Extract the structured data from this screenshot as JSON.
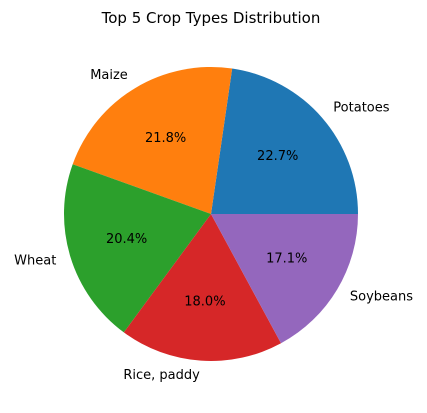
{
  "chart_data": {
    "type": "pie",
    "title": "Top 5 Crop Types Distribution",
    "categories": [
      "Potatoes",
      "Maize",
      "Wheat",
      "Rice, paddy",
      "Soybeans"
    ],
    "values": [
      22.7,
      21.8,
      20.4,
      18.0,
      17.1
    ],
    "value_labels": [
      "22.7%",
      "21.8%",
      "20.4%",
      "18.0%",
      "17.1%"
    ],
    "colors": [
      "#1f77b4",
      "#ff7f0e",
      "#2ca02c",
      "#d62728",
      "#9467bd"
    ],
    "start_angle_deg": 0,
    "direction": "counterclockwise",
    "legend": "none"
  }
}
